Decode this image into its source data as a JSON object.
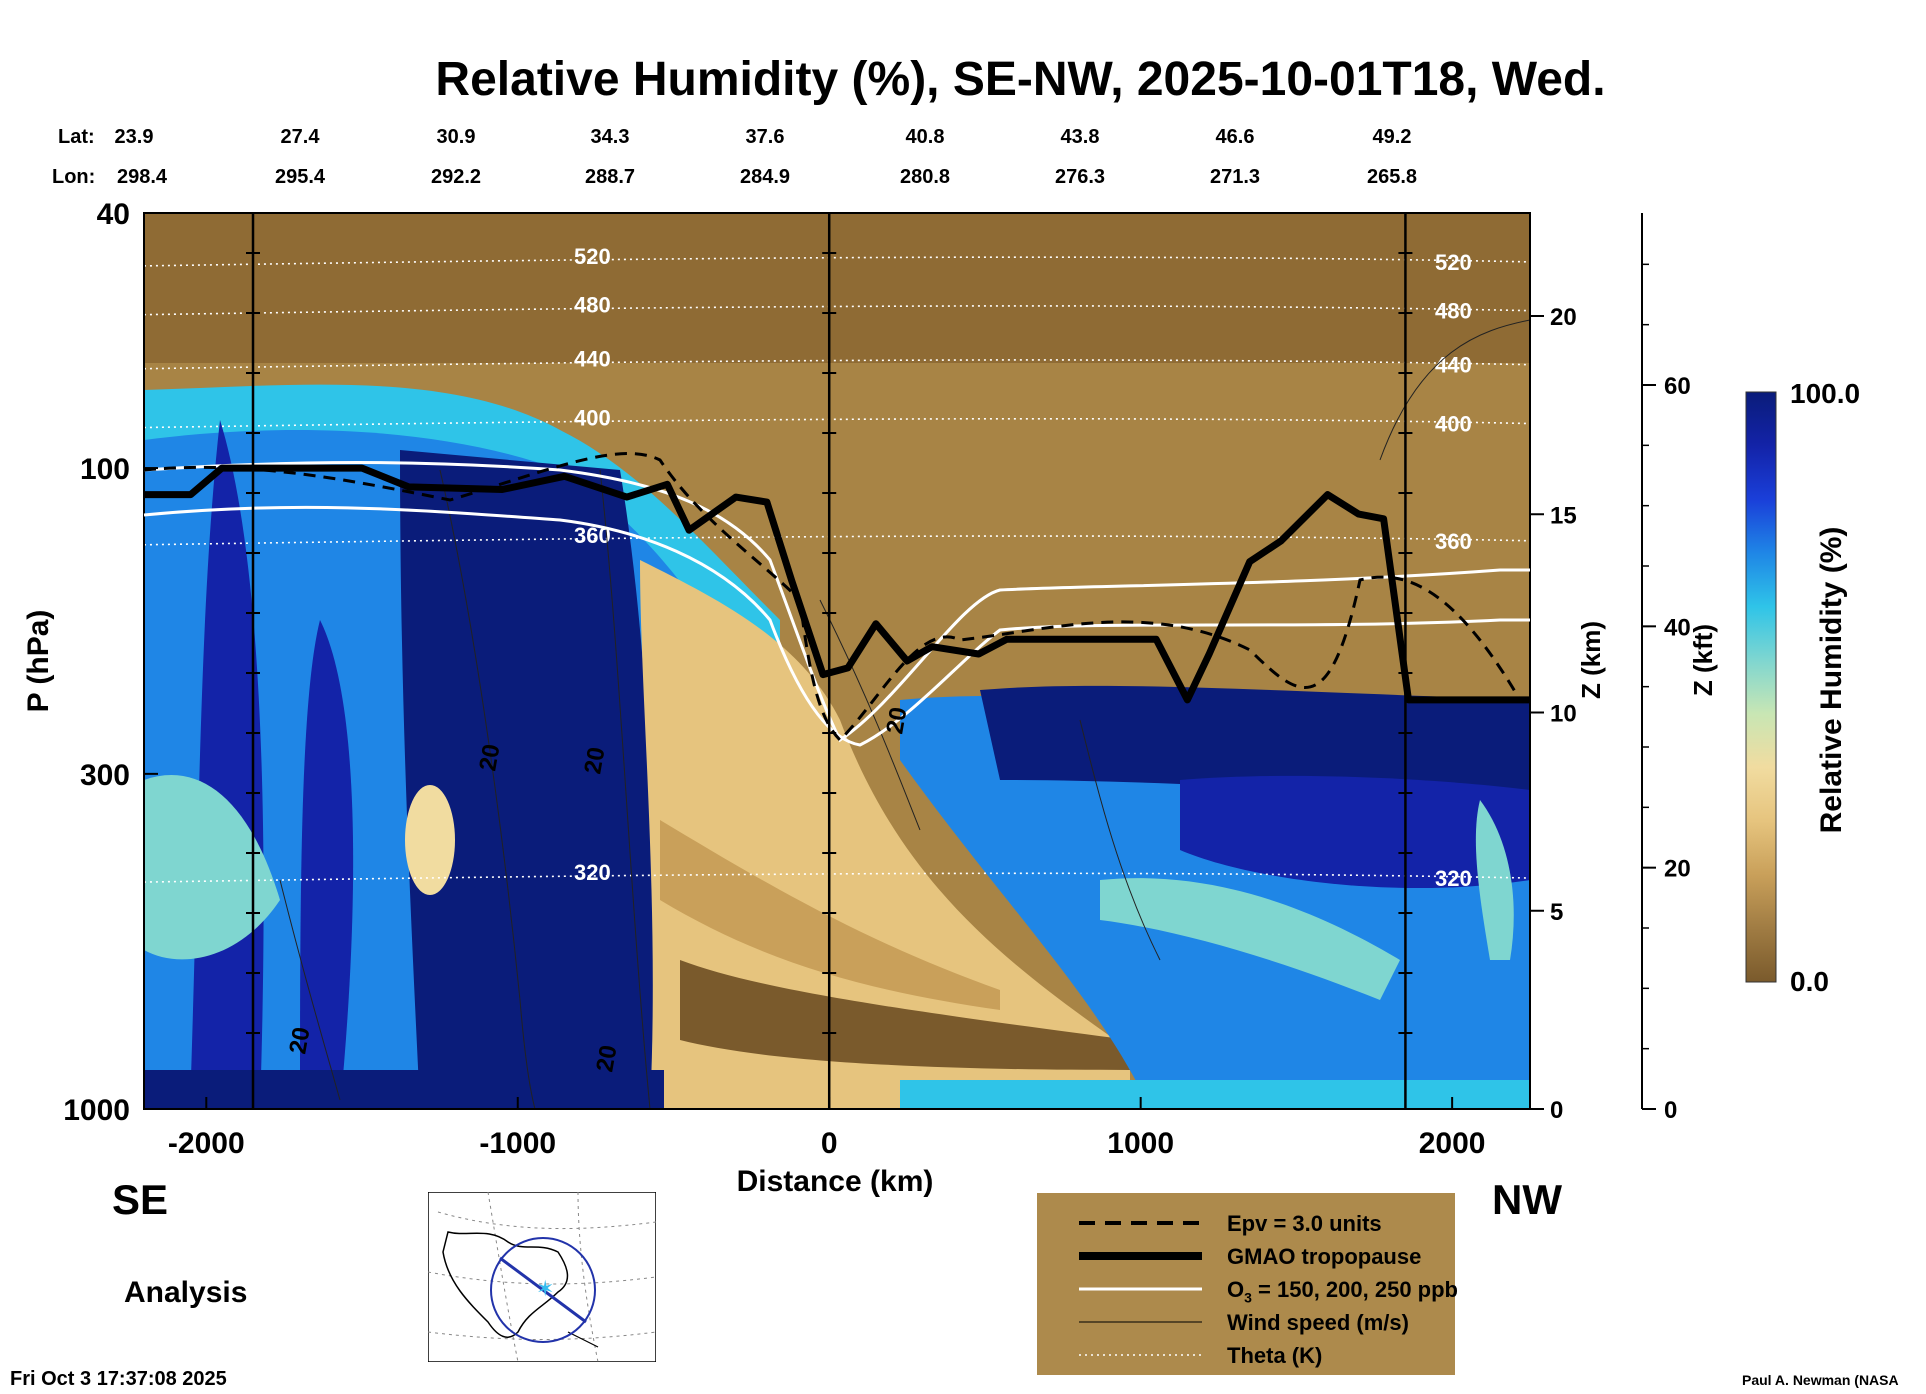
{
  "title": "Relative Humidity (%), SE-NW, 2025-10-01T18, Wed.",
  "lat_label": "Lat:",
  "lon_label": "Lon:",
  "lats": [
    "23.9",
    "27.4",
    "30.9",
    "34.3",
    "37.6",
    "40.8",
    "43.8",
    "46.6",
    "49.2"
  ],
  "lons": [
    "298.4",
    "295.4",
    "292.2",
    "288.7",
    "284.9",
    "280.8",
    "276.3",
    "271.3",
    "265.8"
  ],
  "left_end_label": "SE",
  "right_end_label": "NW",
  "analysis_label": "Analysis",
  "timestamp": "Fri Oct  3 17:37:08 2025",
  "credit": "Paul A. Newman (NASA",
  "legend": {
    "items": [
      {
        "label": "Epv = 3.0 units",
        "style": "dashed-black"
      },
      {
        "label": "GMAO tropopause",
        "style": "thick-black"
      },
      {
        "label": "O3 = 150, 200, 250 ppb",
        "style": "white"
      },
      {
        "label": "Wind speed (m/s)",
        "style": "thin-black"
      },
      {
        "label": "Theta (K)",
        "style": "dotted-white"
      }
    ],
    "o3_prefix": "O",
    "o3_sub": "3",
    "o3_suffix": " = 150, 200, 250 ppb",
    "background": "#ad8a4c"
  },
  "colorbar": {
    "label": "Relative Humidity (%)",
    "max_label": "100.0",
    "min_label": "0.0",
    "stops": [
      "#7a5a2c",
      "#a07c43",
      "#c9a05a",
      "#e6c47e",
      "#f1dca0",
      "#c8e6b4",
      "#7fd6d0",
      "#2fc4e8",
      "#1f86e6",
      "#1a3fd9",
      "#1323a8",
      "#0a1c7a"
    ]
  },
  "chart_data": {
    "type": "heatmap",
    "title": "Relative Humidity (%), SE-NW, 2025-10-01T18, Wed.",
    "xlabel": "Distance (km)",
    "ylabel": "P (hPa)",
    "xlim": [
      -2200,
      2250
    ],
    "ylim": [
      1000,
      40
    ],
    "yscale": "log",
    "x_ticks": [
      -2000,
      -1000,
      0,
      1000,
      2000
    ],
    "y_ticks": [
      40,
      100,
      300,
      1000
    ],
    "z_km_label": "Z (km)",
    "z_km_ticks": [
      0,
      5,
      10,
      15,
      20
    ],
    "z_kft_label": "Z (kft)",
    "z_kft_ticks": [
      0,
      20,
      40,
      60
    ],
    "vertical_lines_km": [
      -1850,
      0,
      1850
    ],
    "theta_levels": [
      {
        "theta": 520,
        "p": 47
      },
      {
        "theta": 480,
        "p": 56
      },
      {
        "theta": 440,
        "p": 68
      },
      {
        "theta": 400,
        "p": 84
      },
      {
        "theta": 360,
        "p": 128
      },
      {
        "theta": 320,
        "p": 430
      }
    ],
    "theta_labels": [
      "520",
      "480",
      "440",
      "400",
      "360",
      "320"
    ],
    "tropopause": [
      {
        "x": -2200,
        "p": 110
      },
      {
        "x": -2050,
        "p": 110
      },
      {
        "x": -1950,
        "p": 100
      },
      {
        "x": -1500,
        "p": 100
      },
      {
        "x": -1350,
        "p": 107
      },
      {
        "x": -1050,
        "p": 108
      },
      {
        "x": -850,
        "p": 103
      },
      {
        "x": -650,
        "p": 111
      },
      {
        "x": -520,
        "p": 106
      },
      {
        "x": -450,
        "p": 125
      },
      {
        "x": -300,
        "p": 111
      },
      {
        "x": -200,
        "p": 113
      },
      {
        "x": -120,
        "p": 150
      },
      {
        "x": -20,
        "p": 210
      },
      {
        "x": 60,
        "p": 205
      },
      {
        "x": 150,
        "p": 175
      },
      {
        "x": 250,
        "p": 200
      },
      {
        "x": 330,
        "p": 190
      },
      {
        "x": 480,
        "p": 195
      },
      {
        "x": 570,
        "p": 185
      },
      {
        "x": 1050,
        "p": 185
      },
      {
        "x": 1150,
        "p": 230
      },
      {
        "x": 1220,
        "p": 195
      },
      {
        "x": 1350,
        "p": 140
      },
      {
        "x": 1450,
        "p": 130
      },
      {
        "x": 1600,
        "p": 110
      },
      {
        "x": 1700,
        "p": 118
      },
      {
        "x": 1780,
        "p": 120
      },
      {
        "x": 1860,
        "p": 230
      },
      {
        "x": 2250,
        "p": 230
      }
    ],
    "wind_label": "20",
    "series": [
      {
        "name": "Epv = 3.0 units"
      },
      {
        "name": "GMAO tropopause"
      },
      {
        "name": "O3 = 150, 200, 250 ppb"
      },
      {
        "name": "Wind speed (m/s)"
      },
      {
        "name": "Theta (K)"
      }
    ]
  }
}
